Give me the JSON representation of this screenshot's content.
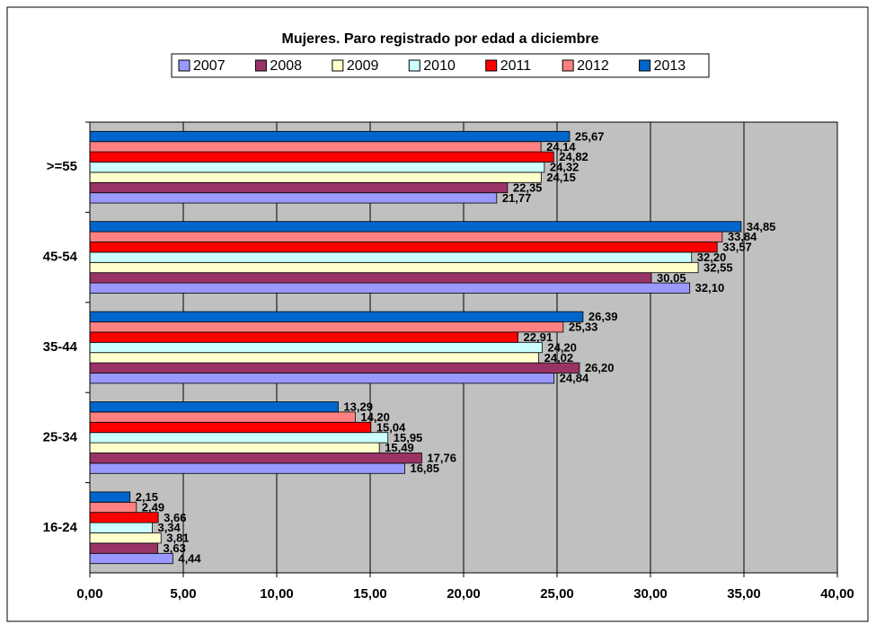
{
  "chart_data": {
    "type": "bar",
    "orientation": "horizontal",
    "title": "Mujeres. Paro registrado por edad a diciembre",
    "categories": [
      ">=55",
      "45-54",
      "35-44",
      "25-34",
      "16-24"
    ],
    "series": [
      {
        "name": "2007",
        "color": "#9999ff",
        "values": [
          21.77,
          32.1,
          24.84,
          16.85,
          4.44
        ],
        "value_labels": [
          "21,77",
          "32,10",
          "24,84",
          "16,85",
          "4,44"
        ]
      },
      {
        "name": "2008",
        "color": "#993366",
        "values": [
          22.35,
          30.05,
          26.2,
          17.76,
          3.63
        ],
        "value_labels": [
          "22,35",
          "30,05",
          "26,20",
          "17,76",
          "3,63"
        ]
      },
      {
        "name": "2009",
        "color": "#ffffcc",
        "values": [
          24.15,
          32.55,
          24.02,
          15.49,
          3.81
        ],
        "value_labels": [
          "24,15",
          "32,55",
          "24,02",
          "15,49",
          "3,81"
        ]
      },
      {
        "name": "2010",
        "color": "#ccffff",
        "values": [
          24.32,
          32.2,
          24.2,
          15.95,
          3.34
        ],
        "value_labels": [
          "24,32",
          "32,20",
          "24,20",
          "15,95",
          "3,34"
        ]
      },
      {
        "name": "2011",
        "color": "#ff0000",
        "values": [
          24.82,
          33.57,
          22.91,
          15.04,
          3.66
        ],
        "value_labels": [
          "24,82",
          "33,57",
          "22,91",
          "15,04",
          "3,66"
        ]
      },
      {
        "name": "2012",
        "color": "#ff8080",
        "values": [
          24.14,
          33.84,
          25.33,
          14.2,
          2.49
        ],
        "value_labels": [
          "24,14",
          "33,84",
          "25,33",
          "14,20",
          "2,49"
        ]
      },
      {
        "name": "2013",
        "color": "#0066cc",
        "values": [
          25.67,
          34.85,
          26.39,
          13.29,
          2.15
        ],
        "value_labels": [
          "25,67",
          "34,85",
          "26,39",
          "13,29",
          "2,15"
        ]
      }
    ],
    "xlim": [
      0,
      40
    ],
    "xticks": [
      {
        "value": 0,
        "label": "0,00"
      },
      {
        "value": 5,
        "label": "5,00"
      },
      {
        "value": 10,
        "label": "10,00"
      },
      {
        "value": 15,
        "label": "15,00"
      },
      {
        "value": 20,
        "label": "20,00"
      },
      {
        "value": 25,
        "label": "25,00"
      },
      {
        "value": 30,
        "label": "30,00"
      },
      {
        "value": 35,
        "label": "35,00"
      },
      {
        "value": 40,
        "label": "40,00"
      }
    ],
    "grid": true,
    "legend": "top",
    "plot_background": "#c0c0c0"
  }
}
